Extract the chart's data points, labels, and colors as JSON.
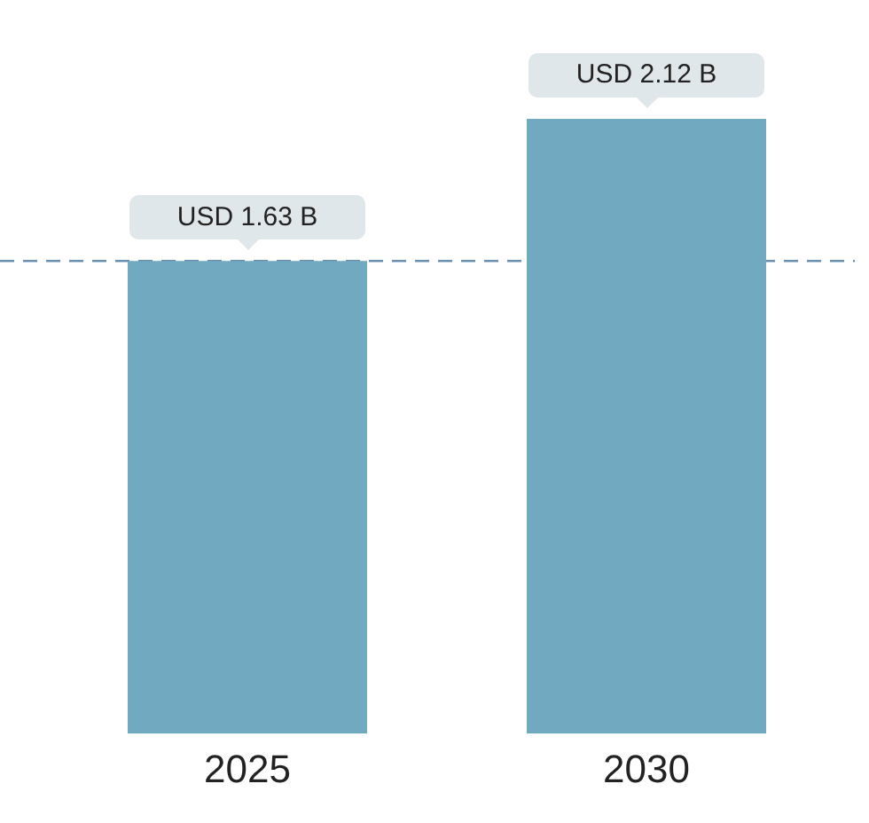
{
  "chart_data": {
    "type": "bar",
    "categories": [
      "2025",
      "2030"
    ],
    "values": [
      1.63,
      2.12
    ],
    "color": "#70a9c0",
    "value_labels": [
      "USD 1.63 B",
      "USD 2.12 B"
    ],
    "ref_lines": [
      {
        "axis": "y",
        "value": 1.63,
        "color": "#6a8fb0",
        "line_style": "dashed"
      }
    ]
  }
}
